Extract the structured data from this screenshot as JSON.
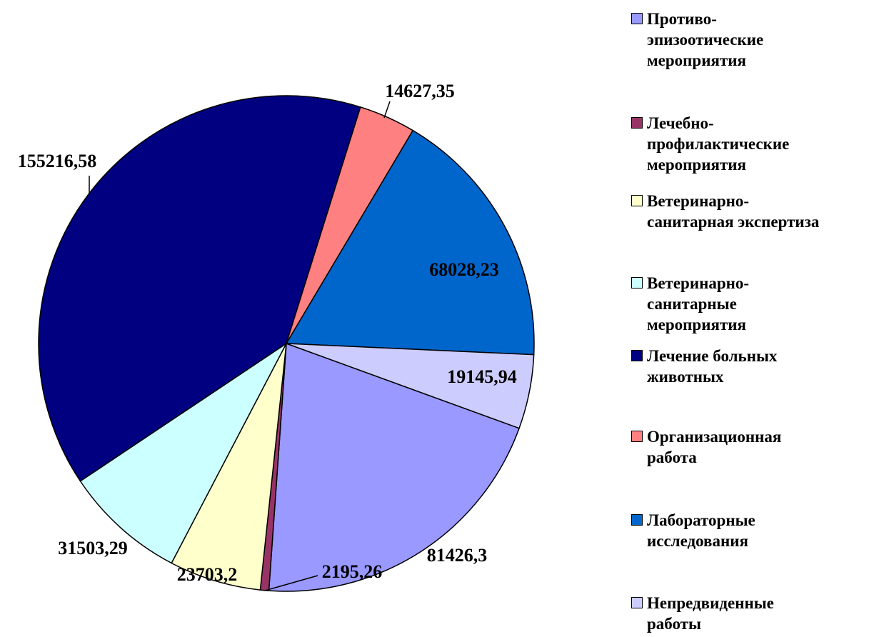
{
  "chart_data": {
    "type": "pie",
    "categories": [
      "Противо-\nэпизоотические\nмероприятия",
      "Лечебно-\nпрофилактические\nмероприятия",
      "Ветеринарно-\nсанитарная экспертиза",
      "Ветеринарно-\nсанитарные\nмероприятия",
      "Лечение больных\nживотных",
      "Организационная\nработа",
      "Лабораторные\nисследования",
      "Непредвиденные\nработы"
    ],
    "values": [
      81426.3,
      2195.26,
      23703.2,
      31503.29,
      155216.58,
      14627.35,
      68028.23,
      19145.94
    ],
    "value_labels": [
      "81426,3",
      "2195,26",
      "23703,2",
      "31503,29",
      "155216,58",
      "14627,35",
      "68028,23",
      "19145,94"
    ],
    "colors": [
      "#9999ff",
      "#993366",
      "#ffffcc",
      "#ccffff",
      "#000080",
      "#ff8080",
      "#0066cc",
      "#ccccff"
    ],
    "legend": "right"
  }
}
